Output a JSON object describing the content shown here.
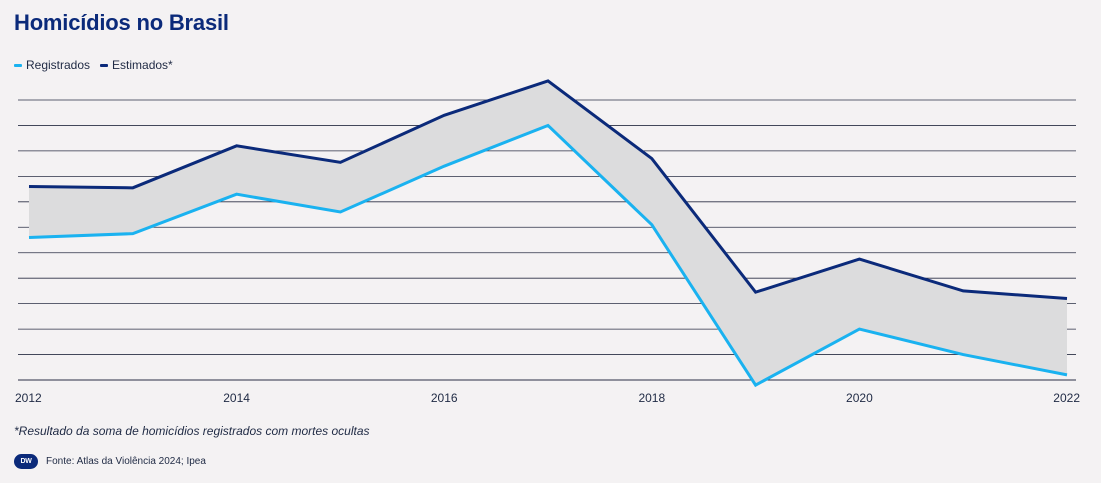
{
  "title": "Homicídios no Brasil",
  "footnote": "*Resultado da soma de homicídios registrados com mortes ocultas",
  "source": "Fonte: Atlas da Violência 2024; Ipea",
  "logo_text": "DW",
  "colors": {
    "registrados": "#1ab2f0",
    "estimados": "#0b2a7a",
    "band": "#dcdcdd",
    "grid": "#2a2f45",
    "title": "#0b2a7a"
  },
  "chart_data": {
    "type": "line",
    "title": "Homicídios no Brasil",
    "xlabel": "",
    "ylabel": "",
    "x": [
      2012,
      2013,
      2014,
      2015,
      2016,
      2017,
      2018,
      2019,
      2020,
      2021,
      2022
    ],
    "x_tick_labels": [
      "2012",
      "2014",
      "2016",
      "2018",
      "2020",
      "2022"
    ],
    "ylim": [
      0,
      11
    ],
    "y_gridlines": 12,
    "y_tick_labels_shown": false,
    "grid": true,
    "legend_placement": "top-left",
    "shaded_band_between_series": true,
    "series": [
      {
        "name": "Registrados",
        "color": "#1ab2f0",
        "values": [
          5.6,
          5.75,
          7.3,
          6.6,
          8.4,
          10.0,
          6.1,
          -0.2,
          2.0,
          1.0,
          0.2
        ]
      },
      {
        "name": "Estimados*",
        "color": "#0b2a7a",
        "values": [
          7.6,
          7.55,
          9.2,
          8.55,
          10.4,
          11.75,
          8.7,
          3.45,
          4.75,
          3.5,
          3.2
        ]
      }
    ]
  }
}
